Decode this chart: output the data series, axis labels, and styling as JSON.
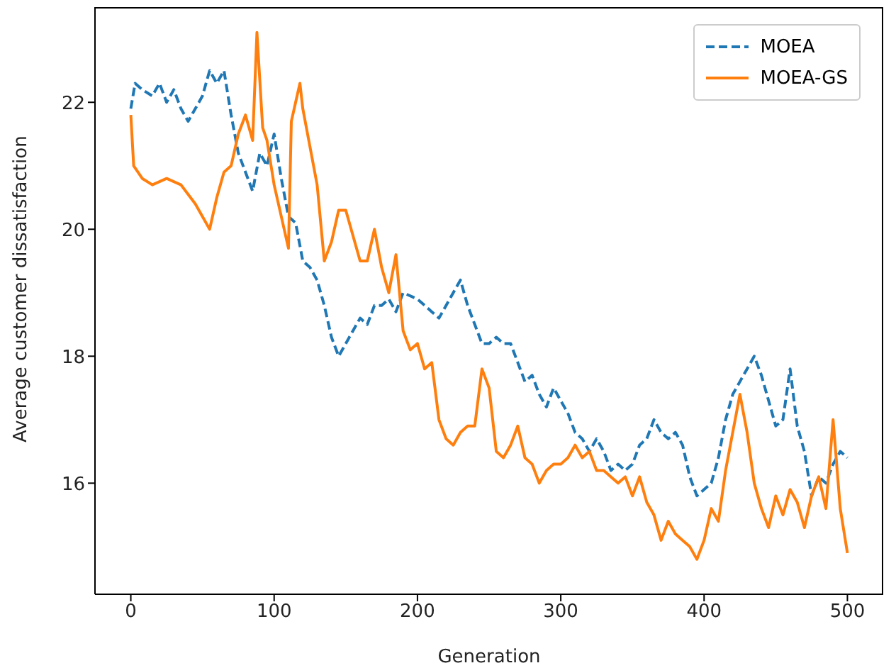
{
  "chart_data": {
    "type": "line",
    "xlabel": "Generation",
    "ylabel": "Average customer dissatisfaction",
    "xlim": [
      -25,
      525
    ],
    "xticks": [
      0,
      100,
      200,
      300,
      400,
      500
    ],
    "ylim": [
      14.25,
      23.5
    ],
    "yticks": [
      16,
      18,
      20,
      22
    ],
    "grid": false,
    "legend": "top right",
    "marker": "none",
    "series": [
      {
        "name": "MOEA",
        "color": "#1f77b4",
        "line_style": "dashed",
        "x": [
          0,
          3,
          8,
          15,
          20,
          25,
          30,
          35,
          40,
          45,
          50,
          55,
          60,
          65,
          70,
          75,
          80,
          85,
          90,
          95,
          100,
          105,
          110,
          115,
          120,
          125,
          130,
          135,
          140,
          145,
          150,
          155,
          160,
          165,
          170,
          175,
          180,
          185,
          190,
          200,
          210,
          215,
          220,
          225,
          230,
          235,
          240,
          245,
          250,
          255,
          260,
          265,
          270,
          275,
          280,
          285,
          290,
          295,
          300,
          305,
          310,
          315,
          320,
          325,
          330,
          335,
          340,
          345,
          350,
          355,
          360,
          365,
          370,
          375,
          380,
          385,
          390,
          395,
          400,
          405,
          410,
          415,
          420,
          425,
          430,
          435,
          440,
          445,
          450,
          455,
          460,
          465,
          470,
          475,
          480,
          485,
          490,
          495,
          500
        ],
        "values": [
          21.9,
          22.3,
          22.2,
          22.1,
          22.3,
          22.0,
          22.2,
          21.9,
          21.7,
          21.9,
          22.1,
          22.5,
          22.3,
          22.5,
          21.8,
          21.2,
          20.9,
          20.6,
          21.2,
          21.0,
          21.5,
          20.8,
          20.2,
          20.1,
          19.5,
          19.4,
          19.2,
          18.8,
          18.3,
          18.0,
          18.2,
          18.4,
          18.6,
          18.5,
          18.8,
          18.8,
          18.9,
          18.7,
          19.0,
          18.9,
          18.7,
          18.6,
          18.8,
          19.0,
          19.2,
          18.8,
          18.5,
          18.2,
          18.2,
          18.3,
          18.2,
          18.2,
          17.9,
          17.6,
          17.7,
          17.4,
          17.2,
          17.5,
          17.3,
          17.1,
          16.8,
          16.7,
          16.5,
          16.7,
          16.5,
          16.2,
          16.3,
          16.2,
          16.3,
          16.6,
          16.7,
          17.0,
          16.8,
          16.7,
          16.8,
          16.6,
          16.1,
          15.8,
          15.9,
          16.0,
          16.4,
          17.0,
          17.4,
          17.6,
          17.8,
          18.0,
          17.7,
          17.3,
          16.9,
          17.0,
          17.8,
          16.9,
          16.5,
          15.8,
          16.1,
          16.0,
          16.3,
          16.5,
          16.4
        ]
      },
      {
        "name": "MOEA-GS",
        "color": "#ff7f0e",
        "line_style": "solid",
        "x": [
          0,
          2,
          8,
          15,
          25,
          35,
          45,
          55,
          60,
          65,
          70,
          75,
          80,
          85,
          88,
          92,
          95,
          100,
          105,
          110,
          112,
          115,
          118,
          120,
          125,
          130,
          135,
          140,
          145,
          150,
          155,
          160,
          165,
          170,
          175,
          180,
          185,
          190,
          195,
          200,
          205,
          210,
          215,
          220,
          225,
          230,
          235,
          240,
          245,
          250,
          255,
          260,
          265,
          270,
          275,
          280,
          285,
          290,
          295,
          300,
          305,
          310,
          315,
          320,
          325,
          330,
          335,
          340,
          345,
          350,
          355,
          360,
          365,
          370,
          375,
          380,
          385,
          390,
          395,
          400,
          405,
          410,
          415,
          420,
          425,
          430,
          435,
          440,
          445,
          450,
          455,
          460,
          465,
          470,
          475,
          480,
          485,
          490,
          495,
          500
        ],
        "values": [
          21.8,
          21.0,
          20.8,
          20.7,
          20.8,
          20.7,
          20.4,
          20.0,
          20.5,
          20.9,
          21.0,
          21.5,
          21.8,
          21.4,
          23.1,
          21.6,
          21.4,
          20.7,
          20.2,
          19.7,
          21.7,
          22.0,
          22.3,
          21.9,
          21.3,
          20.7,
          19.5,
          19.8,
          20.3,
          20.3,
          19.9,
          19.5,
          19.5,
          20.0,
          19.4,
          19.0,
          19.6,
          18.4,
          18.1,
          18.2,
          17.8,
          17.9,
          17.0,
          16.7,
          16.6,
          16.8,
          16.9,
          16.9,
          17.8,
          17.5,
          16.5,
          16.4,
          16.6,
          16.9,
          16.4,
          16.3,
          16.0,
          16.2,
          16.3,
          16.3,
          16.4,
          16.6,
          16.4,
          16.5,
          16.2,
          16.2,
          16.1,
          16.0,
          16.1,
          15.8,
          16.1,
          15.7,
          15.5,
          15.1,
          15.4,
          15.2,
          15.1,
          15.0,
          14.8,
          15.1,
          15.6,
          15.4,
          16.2,
          16.8,
          17.4,
          16.8,
          16.0,
          15.6,
          15.3,
          15.8,
          15.5,
          15.9,
          15.7,
          15.3,
          15.8,
          16.1,
          15.6,
          17.0,
          15.6,
          14.9
        ]
      }
    ]
  }
}
